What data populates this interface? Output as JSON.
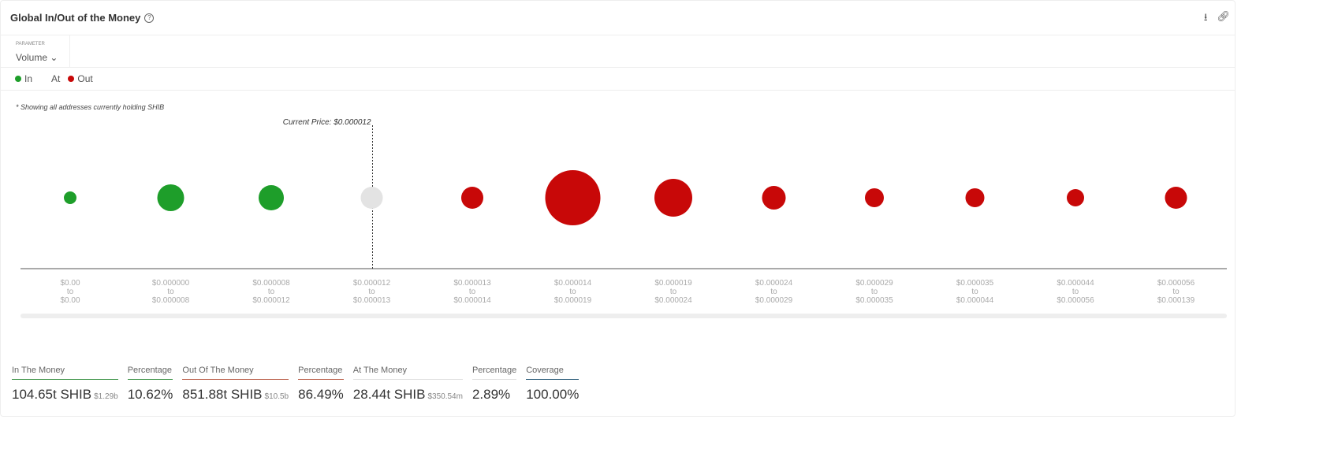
{
  "header": {
    "title": "Global In/Out of the Money",
    "help_icon": "?"
  },
  "parameter": {
    "label": "PARAMETER",
    "value": "Volume"
  },
  "legend": [
    {
      "label": "In",
      "color": "#1e9e2a"
    },
    {
      "label": "At",
      "color": ""
    },
    {
      "label": "Out",
      "color": "#c80808"
    }
  ],
  "note": "* Showing all addresses currently holding SHIB",
  "chart_data": {
    "type": "bubble",
    "current_price_label": "Current Price: $0.000012",
    "current_price_index": 3,
    "categories": [
      [
        "$0.00",
        "to",
        "$0.00"
      ],
      [
        "$0.000000",
        "to",
        "$0.000008"
      ],
      [
        "$0.000008",
        "to",
        "$0.000012"
      ],
      [
        "$0.000012",
        "to",
        "$0.000013"
      ],
      [
        "$0.000013",
        "to",
        "$0.000014"
      ],
      [
        "$0.000014",
        "to",
        "$0.000019"
      ],
      [
        "$0.000019",
        "to",
        "$0.000024"
      ],
      [
        "$0.000024",
        "to",
        "$0.000029"
      ],
      [
        "$0.000029",
        "to",
        "$0.000035"
      ],
      [
        "$0.000035",
        "to",
        "$0.000044"
      ],
      [
        "$0.000044",
        "to",
        "$0.000056"
      ],
      [
        "$0.000056",
        "to",
        "$0.000139"
      ]
    ],
    "relative_size": [
      8,
      17,
      16,
      14,
      14,
      35,
      24,
      15,
      12,
      12,
      11,
      14
    ],
    "status": [
      "in",
      "in",
      "in",
      "at",
      "out",
      "out",
      "out",
      "out",
      "out",
      "out",
      "out",
      "out"
    ],
    "colors": {
      "in": "#1e9e2a",
      "at": "#e3e3e3",
      "out": "#c80808"
    }
  },
  "stats": [
    {
      "label": "In The Money",
      "value": "104.65t SHIB",
      "sub": "$1.29b",
      "color": "#2e8b3a"
    },
    {
      "label": "Percentage",
      "value": "10.62%",
      "sub": "",
      "color": "#2e8b3a"
    },
    {
      "label": "Out Of The Money",
      "value": "851.88t SHIB",
      "sub": "$10.5b",
      "color": "#b5533c"
    },
    {
      "label": "Percentage",
      "value": "86.49%",
      "sub": "",
      "color": "#b5533c"
    },
    {
      "label": "At The Money",
      "value": "28.44t SHIB",
      "sub": "$350.54m",
      "color": "#ddd"
    },
    {
      "label": "Percentage",
      "value": "2.89%",
      "sub": "",
      "color": "#ddd"
    },
    {
      "label": "Coverage",
      "value": "100.00%",
      "sub": "",
      "color": "#1a4f6e"
    }
  ]
}
